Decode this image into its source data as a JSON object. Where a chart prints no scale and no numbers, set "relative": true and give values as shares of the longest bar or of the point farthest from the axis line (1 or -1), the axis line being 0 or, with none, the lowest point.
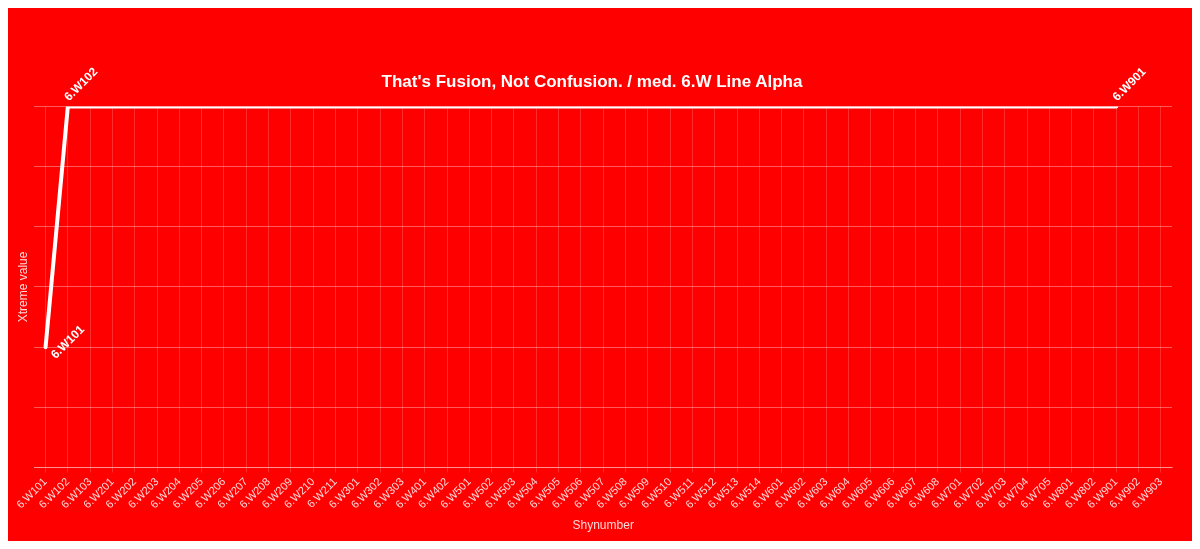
{
  "chart_data": {
    "type": "line",
    "title": "That's Fusion, Not Confusion. / med. 6.W Line Alpha",
    "xlabel": "Shynumber",
    "ylabel": "Xtreme value",
    "relative": true,
    "grid": true,
    "legend": false,
    "marker": "none",
    "line_style": "solid",
    "categories": [
      "6.W101",
      "6.W102",
      "6.W103",
      "6.W201",
      "6.W202",
      "6.W203",
      "6.W204",
      "6.W205",
      "6.W206",
      "6.W207",
      "6.W208",
      "6.W209",
      "6.W210",
      "6.W211",
      "6.W301",
      "6.W302",
      "6.W303",
      "6.W401",
      "6.W402",
      "6.W501",
      "6.W502",
      "6.W503",
      "6.W504",
      "6.W505",
      "6.W506",
      "6.W507",
      "6.W508",
      "6.W509",
      "6.W510",
      "6.W511",
      "6.W512",
      "6.W513",
      "6.W514",
      "6.W601",
      "6.W602",
      "6.W603",
      "6.W604",
      "6.W605",
      "6.W606",
      "6.W607",
      "6.W608",
      "6.W701",
      "6.W702",
      "6.W703",
      "6.W704",
      "6.W705",
      "6.W801",
      "6.W802",
      "6.W901",
      "6.W902",
      "6.W903"
    ],
    "series": [
      {
        "color": "#ffffff",
        "values": [
          0.333,
          1,
          1,
          1,
          1,
          1,
          1,
          1,
          1,
          1,
          1,
          1,
          1,
          1,
          1,
          1,
          1,
          1,
          1,
          1,
          1,
          1,
          1,
          1,
          1,
          1,
          1,
          1,
          1,
          1,
          1,
          1,
          1,
          1,
          1,
          1,
          1,
          1,
          1,
          1,
          1,
          1,
          1,
          1,
          1,
          1,
          1,
          1,
          1,
          null,
          null
        ]
      }
    ],
    "annotations": [
      {
        "text": "6.W101",
        "x": "6.W101",
        "y": 0.333
      },
      {
        "text": "6.W102",
        "x": "6.W102",
        "y": 1
      },
      {
        "text": "6.W901",
        "x": "6.W901",
        "y": 1
      }
    ]
  }
}
